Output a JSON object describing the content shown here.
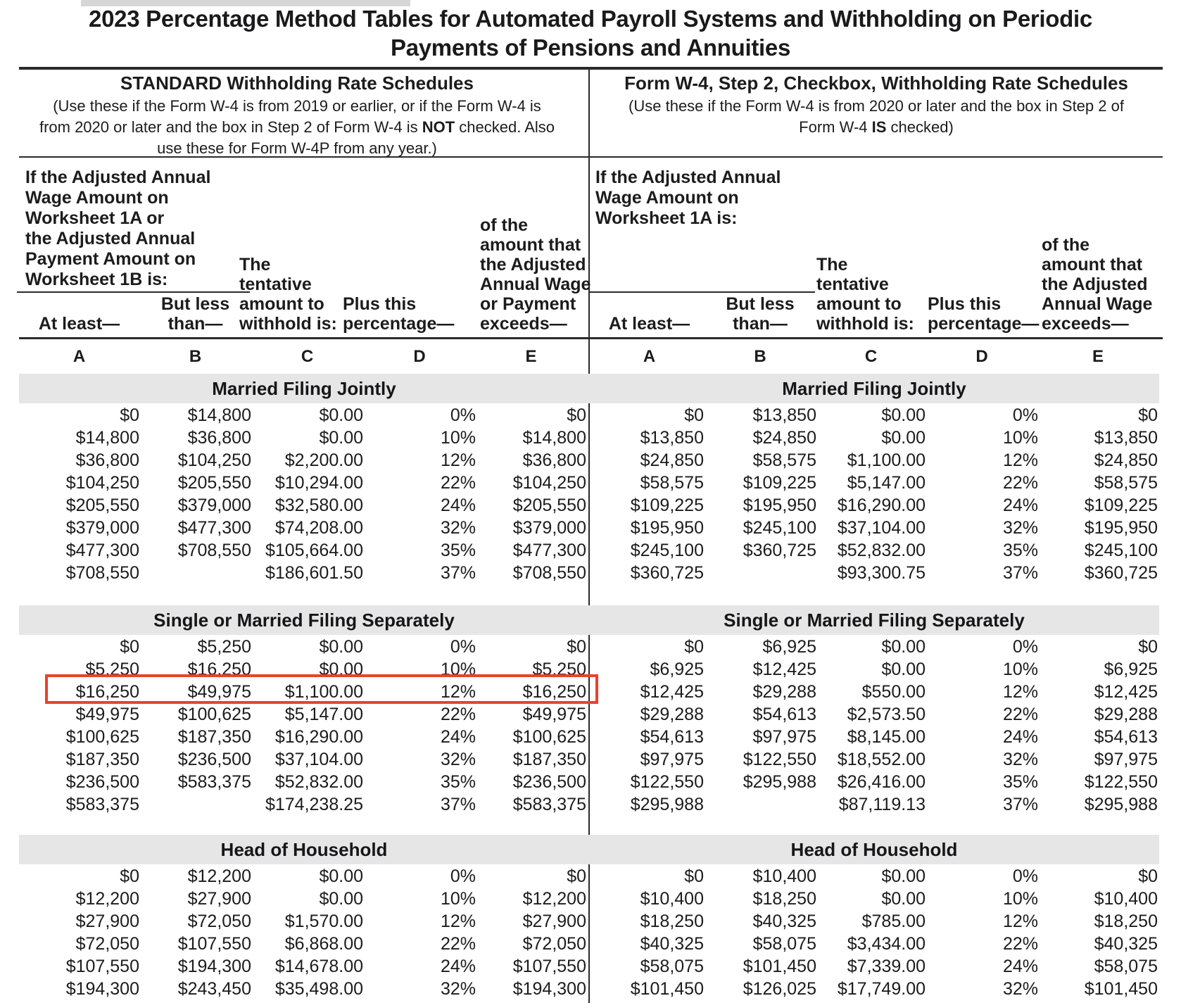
{
  "page": {
    "title": "2023 Percentage Method Tables for Automated Payroll Systems and Withholding on Periodic\nPayments of Pensions and Annuities"
  },
  "left_schedule": {
    "title": "STANDARD Withholding Rate Schedules",
    "note_pre": "(Use these if the Form W-4 is from 2019 or earlier, or if the Form W-4 is\nfrom 2020 or later and the box in Step 2 of Form W-4 is ",
    "note_bold": "NOT",
    "note_post": " checked. Also\nuse these for Form W-4P from any year.)",
    "intro": "If the Adjusted Annual\nWage Amount on\nWorksheet 1A or\nthe Adjusted Annual\nPayment Amount on\nWorksheet 1B is:",
    "col_headers": {
      "a": "At least—",
      "b": "But less\nthan—",
      "c": "The\ntentative\namount to\nwithhold is:",
      "d": "Plus this\npercentage—",
      "e": "of the\namount that\nthe Adjusted\nAnnual Wage\nor Payment\nexceeds—"
    },
    "letters": [
      "A",
      "B",
      "C",
      "D",
      "E"
    ]
  },
  "right_schedule": {
    "title": "Form W-4, Step 2, Checkbox, Withholding Rate Schedules",
    "note_pre": "(Use these if the Form W-4 is from 2020 or later and the box in Step 2 of\nForm W-4 ",
    "note_bold": "IS",
    "note_post": " checked)",
    "intro": "If the Adjusted Annual\nWage Amount on\nWorksheet 1A is:",
    "col_headers": {
      "a": "At least—",
      "b": "But less\nthan—",
      "c": "The\ntentative\namount to\nwithhold is:",
      "d": "Plus this\npercentage—",
      "e": "of the\namount that\nthe Adjusted\nAnnual Wage\nexceeds—"
    },
    "letters": [
      "A",
      "B",
      "C",
      "D",
      "E"
    ]
  },
  "sections": [
    {
      "title": "Married Filing Jointly",
      "left_rows": [
        [
          "$0",
          "$14,800",
          "$0.00",
          "0%",
          "$0"
        ],
        [
          "$14,800",
          "$36,800",
          "$0.00",
          "10%",
          "$14,800"
        ],
        [
          "$36,800",
          "$104,250",
          "$2,200.00",
          "12%",
          "$36,800"
        ],
        [
          "$104,250",
          "$205,550",
          "$10,294.00",
          "22%",
          "$104,250"
        ],
        [
          "$205,550",
          "$379,000",
          "$32,580.00",
          "24%",
          "$205,550"
        ],
        [
          "$379,000",
          "$477,300",
          "$74,208.00",
          "32%",
          "$379,000"
        ],
        [
          "$477,300",
          "$708,550",
          "$105,664.00",
          "35%",
          "$477,300"
        ],
        [
          "$708,550",
          "",
          "$186,601.50",
          "37%",
          "$708,550"
        ]
      ],
      "right_rows": [
        [
          "$0",
          "$13,850",
          "$0.00",
          "0%",
          "$0"
        ],
        [
          "$13,850",
          "$24,850",
          "$0.00",
          "10%",
          "$13,850"
        ],
        [
          "$24,850",
          "$58,575",
          "$1,100.00",
          "12%",
          "$24,850"
        ],
        [
          "$58,575",
          "$109,225",
          "$5,147.00",
          "22%",
          "$58,575"
        ],
        [
          "$109,225",
          "$195,950",
          "$16,290.00",
          "24%",
          "$109,225"
        ],
        [
          "$195,950",
          "$245,100",
          "$37,104.00",
          "32%",
          "$195,950"
        ],
        [
          "$245,100",
          "$360,725",
          "$52,832.00",
          "35%",
          "$245,100"
        ],
        [
          "$360,725",
          "",
          "$93,300.75",
          "37%",
          "$360,725"
        ]
      ]
    },
    {
      "title": "Single or Married Filing Separately",
      "left_highlight_row": 2,
      "left_rows": [
        [
          "$0",
          "$5,250",
          "$0.00",
          "0%",
          "$0"
        ],
        [
          "$5,250",
          "$16,250",
          "$0.00",
          "10%",
          "$5,250"
        ],
        [
          "$16,250",
          "$49,975",
          "$1,100.00",
          "12%",
          "$16,250"
        ],
        [
          "$49,975",
          "$100,625",
          "$5,147.00",
          "22%",
          "$49,975"
        ],
        [
          "$100,625",
          "$187,350",
          "$16,290.00",
          "24%",
          "$100,625"
        ],
        [
          "$187,350",
          "$236,500",
          "$37,104.00",
          "32%",
          "$187,350"
        ],
        [
          "$236,500",
          "$583,375",
          "$52,832.00",
          "35%",
          "$236,500"
        ],
        [
          "$583,375",
          "",
          "$174,238.25",
          "37%",
          "$583,375"
        ]
      ],
      "right_rows": [
        [
          "$0",
          "$6,925",
          "$0.00",
          "0%",
          "$0"
        ],
        [
          "$6,925",
          "$12,425",
          "$0.00",
          "10%",
          "$6,925"
        ],
        [
          "$12,425",
          "$29,288",
          "$550.00",
          "12%",
          "$12,425"
        ],
        [
          "$29,288",
          "$54,613",
          "$2,573.50",
          "22%",
          "$29,288"
        ],
        [
          "$54,613",
          "$97,975",
          "$8,145.00",
          "24%",
          "$54,613"
        ],
        [
          "$97,975",
          "$122,550",
          "$18,552.00",
          "32%",
          "$97,975"
        ],
        [
          "$122,550",
          "$295,988",
          "$26,416.00",
          "35%",
          "$122,550"
        ],
        [
          "$295,988",
          "",
          "$87,119.13",
          "37%",
          "$295,988"
        ]
      ]
    },
    {
      "title": "Head of Household",
      "left_rows": [
        [
          "$0",
          "$12,200",
          "$0.00",
          "0%",
          "$0"
        ],
        [
          "$12,200",
          "$27,900",
          "$0.00",
          "10%",
          "$12,200"
        ],
        [
          "$27,900",
          "$72,050",
          "$1,570.00",
          "12%",
          "$27,900"
        ],
        [
          "$72,050",
          "$107,550",
          "$6,868.00",
          "22%",
          "$72,050"
        ],
        [
          "$107,550",
          "$194,300",
          "$14,678.00",
          "24%",
          "$107,550"
        ],
        [
          "$194,300",
          "$243,450",
          "$35,498.00",
          "32%",
          "$194,300"
        ]
      ],
      "right_rows": [
        [
          "$0",
          "$10,400",
          "$0.00",
          "0%",
          "$0"
        ],
        [
          "$10,400",
          "$18,250",
          "$0.00",
          "10%",
          "$10,400"
        ],
        [
          "$18,250",
          "$40,325",
          "$785.00",
          "12%",
          "$18,250"
        ],
        [
          "$40,325",
          "$58,075",
          "$3,434.00",
          "22%",
          "$40,325"
        ],
        [
          "$58,075",
          "$101,450",
          "$7,339.00",
          "24%",
          "$58,075"
        ],
        [
          "$101,450",
          "$126,025",
          "$17,749.00",
          "32%",
          "$101,450"
        ]
      ]
    }
  ],
  "highlight_color": "#e8432c"
}
